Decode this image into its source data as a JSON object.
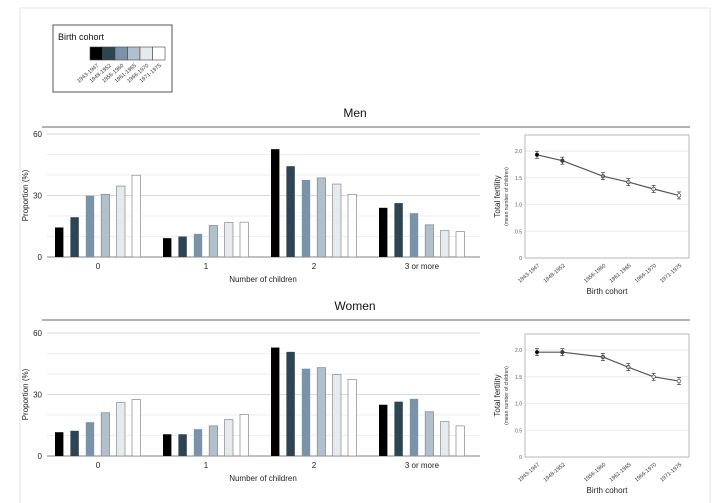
{
  "legend": {
    "title": "Birth cohort",
    "cohorts": [
      "1943-1947",
      "1948-1952",
      "1956-1960",
      "1961-1965",
      "1966-1970",
      "1971-1975"
    ],
    "colors": [
      "#000000",
      "#2d4452",
      "#7a93a8",
      "#b0c0cc",
      "#e4eaee",
      "#ffffff"
    ]
  },
  "chart_data": [
    {
      "panel": "Men",
      "type": "bar",
      "title": "Men",
      "xlabel": "Number of children",
      "ylabel": "Proportion (%)",
      "categories": [
        "0",
        "1",
        "2",
        "3 or more"
      ],
      "ylim": [
        0,
        60
      ],
      "yticks": [
        0,
        30,
        60
      ],
      "grid": true,
      "series": [
        {
          "name": "1943-1947",
          "values": [
            14.4,
            9.2,
            52.6,
            24.0
          ]
        },
        {
          "name": "1948-1952",
          "values": [
            19.4,
            10.0,
            44.3,
            26.3
          ]
        },
        {
          "name": "1956-1960",
          "values": [
            29.9,
            11.3,
            37.6,
            21.4
          ]
        },
        {
          "name": "1961-1965",
          "values": [
            30.6,
            15.4,
            38.6,
            15.7
          ]
        },
        {
          "name": "1966-1970",
          "values": [
            34.6,
            16.8,
            35.6,
            12.9
          ]
        },
        {
          "name": "1971-1975",
          "values": [
            39.9,
            17.0,
            30.6,
            12.4
          ]
        }
      ]
    },
    {
      "panel": "Men",
      "type": "line",
      "xlabel": "Birth cohort",
      "ylabel": "Total fertility",
      "ylabel_sub": "(mean number of children)",
      "categories": [
        "1943-1947",
        "1948-1952",
        "1956-1960",
        "1961-1965",
        "1966-1970",
        "1971-1975"
      ],
      "x": [
        1945,
        1950,
        1958,
        1963,
        1968,
        1973
      ],
      "values": [
        1.93,
        1.82,
        1.53,
        1.42,
        1.29,
        1.17
      ],
      "ylim": [
        0,
        2.3
      ],
      "yticks": [
        "0",
        "0.5",
        "1.0",
        "1.5",
        "2.0"
      ],
      "grid": true,
      "error_bars": true
    },
    {
      "panel": "Women",
      "type": "bar",
      "title": "Women",
      "xlabel": "Number of children",
      "ylabel": "Proportion (%)",
      "categories": [
        "0",
        "1",
        "2",
        "3 or more"
      ],
      "ylim": [
        0,
        60
      ],
      "yticks": [
        0,
        30,
        60
      ],
      "grid": true,
      "series": [
        {
          "name": "1943-1947",
          "values": [
            11.6,
            10.6,
            52.9,
            25.0
          ]
        },
        {
          "name": "1948-1952",
          "values": [
            12.3,
            10.6,
            50.8,
            26.5
          ]
        },
        {
          "name": "1956-1960",
          "values": [
            16.5,
            13.1,
            42.6,
            27.9
          ]
        },
        {
          "name": "1961-1965",
          "values": [
            21.1,
            14.7,
            43.1,
            21.6
          ]
        },
        {
          "name": "1966-1970",
          "values": [
            26.1,
            17.8,
            39.7,
            16.8
          ]
        },
        {
          "name": "1971-1975",
          "values": [
            27.6,
            20.3,
            37.4,
            14.7
          ]
        }
      ]
    },
    {
      "panel": "Women",
      "type": "line",
      "xlabel": "Birth cohort",
      "ylabel": "Total fertility",
      "ylabel_sub": "(mean number of children)",
      "categories": [
        "1943-1947",
        "1948-1952",
        "1956-1960",
        "1961-1965",
        "1966-1970",
        "1971-1975"
      ],
      "x": [
        1945,
        1950,
        1958,
        1963,
        1968,
        1973
      ],
      "values": [
        1.96,
        1.96,
        1.87,
        1.68,
        1.5,
        1.42
      ],
      "ylim": [
        0,
        2.3
      ],
      "yticks": [
        "0",
        "0.5",
        "1.0",
        "1.5",
        "2.0"
      ],
      "grid": true,
      "error_bars": true
    }
  ]
}
